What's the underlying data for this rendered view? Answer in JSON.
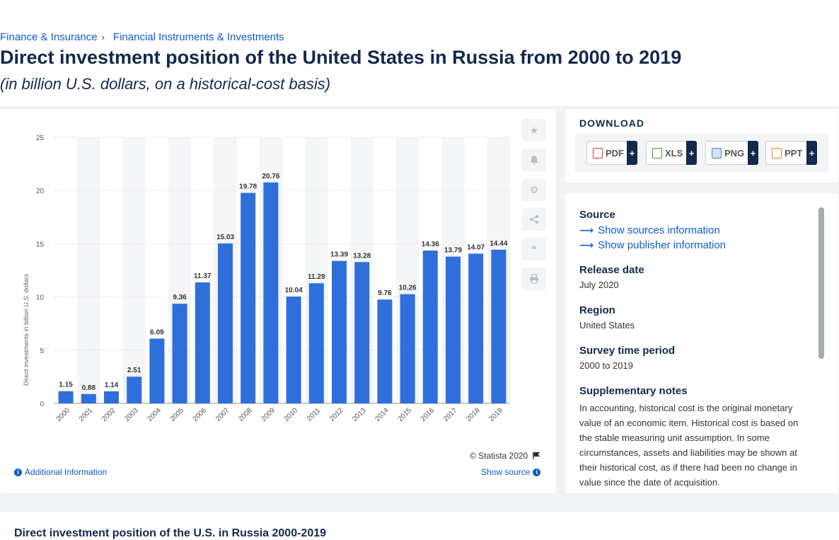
{
  "breadcrumb": {
    "item1": "Finance & Insurance",
    "separator": "›",
    "item2": "Financial Instruments & Investments"
  },
  "title": "Direct investment position of the United States in Russia from 2000 to 2019",
  "subtitle": "(in billion U.S. dollars, on a historical-cost basis)",
  "chart_data": {
    "type": "bar",
    "ylabel": "Direct investments in billion U.S. dollars",
    "xlabel": "",
    "ylim": [
      0,
      25
    ],
    "yticks": [
      0,
      5,
      10,
      15,
      20,
      25
    ],
    "categories": [
      "2000",
      "2001",
      "2002",
      "2003",
      "2004",
      "2005",
      "2006",
      "2007",
      "2008",
      "2009",
      "2010",
      "2011",
      "2012",
      "2013",
      "2014",
      "2015",
      "2016",
      "2017",
      "2018",
      "2019"
    ],
    "values": [
      1.15,
      0.88,
      1.14,
      2.51,
      6.09,
      9.36,
      11.37,
      15.03,
      19.78,
      20.76,
      10.04,
      11.29,
      13.39,
      13.28,
      9.76,
      10.26,
      14.36,
      13.79,
      14.07,
      14.44
    ],
    "grid": true,
    "bar_color": "#2f6fdc"
  },
  "chart_footer": {
    "copyright": "© Statista 2020",
    "additional_info": "Additional Information",
    "show_source": "Show source"
  },
  "download": {
    "heading": "DOWNLOAD",
    "buttons": [
      {
        "label": "PDF",
        "plus": "+"
      },
      {
        "label": "XLS",
        "plus": "+"
      },
      {
        "label": "PNG",
        "plus": "+"
      },
      {
        "label": "PPT",
        "plus": "+"
      }
    ]
  },
  "source_panel": {
    "source_heading": "Source",
    "show_sources": "Show sources information",
    "show_publisher": "Show publisher information",
    "release_heading": "Release date",
    "release_value": "July 2020",
    "region_heading": "Region",
    "region_value": "United States",
    "survey_heading": "Survey time period",
    "survey_value": "2000 to 2019",
    "notes_heading": "Supplementary notes",
    "notes_text": "In accounting, historical cost is the original monetary value of an economic item. Historical cost is based on the stable measuring unit assumption. In some circumstances, assets and liabilities may be shown at their historical cost, as if there had been no change in value since the date of acquisition."
  },
  "bottom": {
    "title": "Direct investment position of the U.S. in Russia 2000-2019"
  }
}
